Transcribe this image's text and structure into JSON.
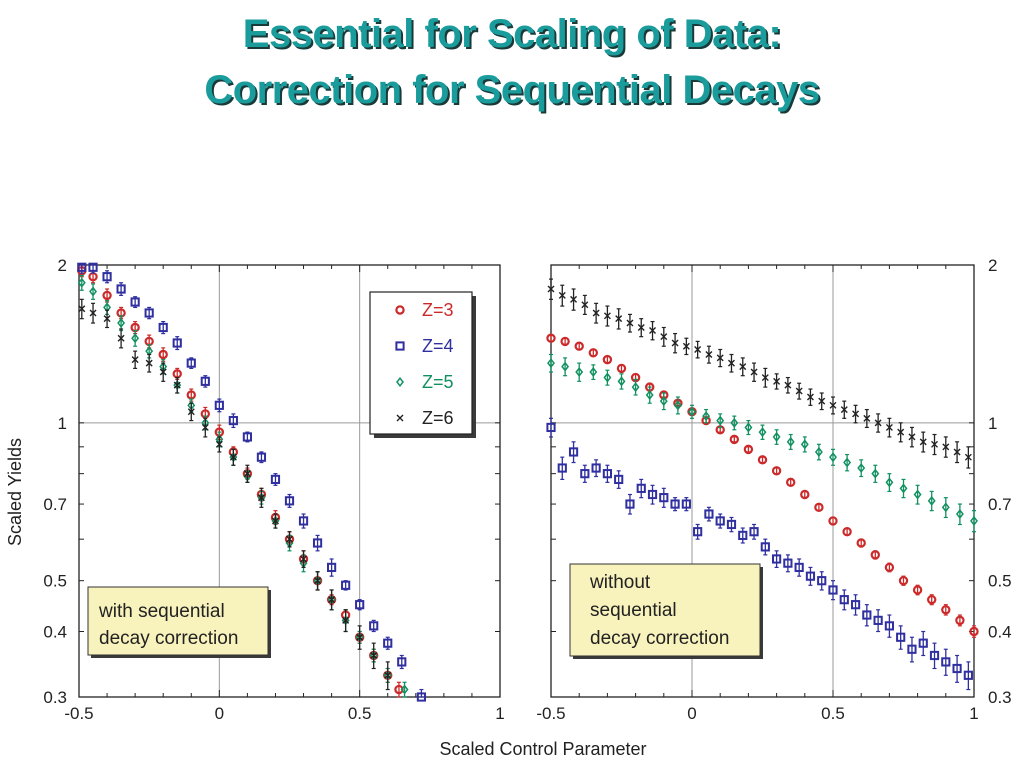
{
  "title_line1": "Essential for Scaling of Data:",
  "title_line2": "Correction for Sequential Decays",
  "colors": {
    "title": "#1a9c9c",
    "z3": "#cc2a2a",
    "z4": "#2f2fa0",
    "z5": "#119060",
    "z6": "#222222",
    "annotation_bg": "#f8f2bd"
  },
  "chart_data": [
    {
      "type": "scatter",
      "panel": "left",
      "xlabel": "Scaled Control Parameter",
      "ylabel": "Scaled Yields",
      "xlim": [
        -0.5,
        1
      ],
      "ylim": [
        0.3,
        2
      ],
      "yscale": "log",
      "x_ticks": [
        "-0.5",
        "0",
        "0.5",
        "1"
      ],
      "y_ticks": [
        "2",
        "1",
        "0.7",
        "0.5",
        "0.4",
        "0.3"
      ],
      "grid": true,
      "legend_position": "top-right",
      "legend": [
        "Z=3",
        "Z=4",
        "Z=5",
        "Z=6"
      ],
      "annotation": [
        "with sequential",
        "decay correction"
      ],
      "series": [
        {
          "name": "Z=3",
          "marker": "circle",
          "color": "#cc2a2a",
          "x": [
            -0.49,
            -0.45,
            -0.4,
            -0.35,
            -0.3,
            -0.25,
            -0.2,
            -0.15,
            -0.1,
            -0.05,
            0.0,
            0.05,
            0.1,
            0.15,
            0.2,
            0.25,
            0.3,
            0.35,
            0.4,
            0.45,
            0.5,
            0.55,
            0.6,
            0.64
          ],
          "y": [
            1.95,
            1.9,
            1.75,
            1.62,
            1.52,
            1.43,
            1.35,
            1.24,
            1.13,
            1.04,
            0.96,
            0.88,
            0.8,
            0.73,
            0.66,
            0.6,
            0.55,
            0.5,
            0.46,
            0.43,
            0.39,
            0.36,
            0.33,
            0.31
          ],
          "err": [
            0.05,
            0.05,
            0.05,
            0.04,
            0.04,
            0.04,
            0.04,
            0.03,
            0.03,
            0.03,
            0.03,
            0.02,
            0.02,
            0.02,
            0.02,
            0.02,
            0.02,
            0.02,
            0.01,
            0.01,
            0.01,
            0.01,
            0.01,
            0.01
          ]
        },
        {
          "name": "Z=4",
          "marker": "square",
          "color": "#2f2fa0",
          "x": [
            -0.49,
            -0.45,
            -0.4,
            -0.35,
            -0.3,
            -0.25,
            -0.2,
            -0.15,
            -0.1,
            -0.05,
            0.0,
            0.05,
            0.1,
            0.15,
            0.2,
            0.25,
            0.3,
            0.35,
            0.4,
            0.45,
            0.5,
            0.55,
            0.6,
            0.65,
            0.72
          ],
          "y": [
            1.98,
            1.98,
            1.9,
            1.8,
            1.7,
            1.62,
            1.52,
            1.42,
            1.3,
            1.2,
            1.08,
            1.01,
            0.94,
            0.86,
            0.78,
            0.71,
            0.65,
            0.59,
            0.53,
            0.49,
            0.45,
            0.41,
            0.38,
            0.35,
            0.3
          ],
          "err": [
            0.05,
            0.05,
            0.05,
            0.05,
            0.04,
            0.04,
            0.04,
            0.04,
            0.03,
            0.03,
            0.03,
            0.03,
            0.02,
            0.02,
            0.02,
            0.02,
            0.02,
            0.02,
            0.02,
            0.01,
            0.01,
            0.01,
            0.01,
            0.01,
            0.01
          ]
        },
        {
          "name": "Z=5",
          "marker": "diamond",
          "color": "#119060",
          "x": [
            -0.49,
            -0.45,
            -0.4,
            -0.35,
            -0.3,
            -0.25,
            -0.2,
            -0.15,
            -0.1,
            -0.05,
            0.0,
            0.05,
            0.1,
            0.15,
            0.2,
            0.25,
            0.3,
            0.35,
            0.4,
            0.45,
            0.5,
            0.55,
            0.6,
            0.66
          ],
          "y": [
            1.85,
            1.78,
            1.66,
            1.55,
            1.45,
            1.37,
            1.28,
            1.18,
            1.08,
            1.0,
            0.93,
            0.86,
            0.79,
            0.72,
            0.65,
            0.59,
            0.54,
            0.5,
            0.46,
            0.42,
            0.39,
            0.36,
            0.33,
            0.31
          ],
          "err": [
            0.06,
            0.06,
            0.05,
            0.05,
            0.05,
            0.04,
            0.04,
            0.04,
            0.03,
            0.03,
            0.03,
            0.03,
            0.02,
            0.02,
            0.02,
            0.02,
            0.02,
            0.02,
            0.02,
            0.02,
            0.01,
            0.01,
            0.01,
            0.01
          ]
        },
        {
          "name": "Z=6",
          "marker": "cross",
          "color": "#222222",
          "x": [
            -0.49,
            -0.45,
            -0.4,
            -0.35,
            -0.3,
            -0.25,
            -0.2,
            -0.15,
            -0.1,
            -0.05,
            0.0,
            0.05,
            0.1,
            0.15,
            0.2,
            0.25,
            0.3,
            0.35,
            0.4,
            0.45,
            0.5,
            0.55,
            0.6
          ],
          "y": [
            1.65,
            1.62,
            1.58,
            1.45,
            1.32,
            1.3,
            1.25,
            1.18,
            1.05,
            0.98,
            0.91,
            0.86,
            0.8,
            0.72,
            0.65,
            0.6,
            0.55,
            0.5,
            0.46,
            0.42,
            0.39,
            0.36,
            0.33
          ],
          "err": [
            0.07,
            0.07,
            0.06,
            0.06,
            0.05,
            0.05,
            0.05,
            0.04,
            0.04,
            0.04,
            0.03,
            0.03,
            0.03,
            0.03,
            0.02,
            0.02,
            0.02,
            0.02,
            0.02,
            0.02,
            0.02,
            0.02,
            0.02
          ]
        }
      ]
    },
    {
      "type": "scatter",
      "panel": "right",
      "xlim": [
        -0.5,
        1
      ],
      "ylim": [
        0.3,
        2
      ],
      "yscale": "log",
      "x_ticks": [
        "-0.5",
        "0",
        "0.5",
        "1"
      ],
      "y_ticks": [
        "2",
        "1",
        "0.7",
        "0.5",
        "0.4",
        "0.3"
      ],
      "grid": true,
      "annotation": [
        "without",
        "sequential",
        "decay correction"
      ],
      "series": [
        {
          "name": "Z=3",
          "marker": "circle",
          "color": "#cc2a2a",
          "x": [
            -0.5,
            -0.45,
            -0.4,
            -0.35,
            -0.3,
            -0.25,
            -0.2,
            -0.15,
            -0.1,
            -0.05,
            0.0,
            0.05,
            0.1,
            0.15,
            0.2,
            0.25,
            0.3,
            0.35,
            0.4,
            0.45,
            0.5,
            0.55,
            0.6,
            0.65,
            0.7,
            0.75,
            0.8,
            0.85,
            0.9,
            0.95,
            1.0
          ],
          "y": [
            1.45,
            1.43,
            1.4,
            1.36,
            1.32,
            1.27,
            1.22,
            1.17,
            1.13,
            1.09,
            1.05,
            1.01,
            0.97,
            0.93,
            0.89,
            0.85,
            0.81,
            0.77,
            0.73,
            0.69,
            0.65,
            0.62,
            0.59,
            0.56,
            0.53,
            0.5,
            0.48,
            0.46,
            0.44,
            0.42,
            0.4
          ],
          "err": [
            0.02,
            0.02,
            0.02,
            0.02,
            0.02,
            0.02,
            0.02,
            0.02,
            0.01,
            0.01,
            0.01,
            0.01,
            0.01,
            0.01,
            0.01,
            0.01,
            0.01,
            0.01,
            0.01,
            0.01,
            0.01,
            0.01,
            0.01,
            0.01,
            0.01,
            0.01,
            0.01,
            0.01,
            0.01,
            0.01,
            0.01
          ]
        },
        {
          "name": "Z=4",
          "marker": "square",
          "color": "#2f2fa0",
          "x": [
            -0.5,
            -0.46,
            -0.42,
            -0.38,
            -0.34,
            -0.3,
            -0.26,
            -0.22,
            -0.18,
            -0.14,
            -0.1,
            -0.06,
            -0.02,
            0.02,
            0.06,
            0.1,
            0.14,
            0.18,
            0.22,
            0.26,
            0.3,
            0.34,
            0.38,
            0.42,
            0.46,
            0.5,
            0.54,
            0.58,
            0.62,
            0.66,
            0.7,
            0.74,
            0.78,
            0.82,
            0.86,
            0.9,
            0.94,
            0.98
          ],
          "y": [
            0.98,
            0.82,
            0.88,
            0.8,
            0.82,
            0.8,
            0.78,
            0.7,
            0.75,
            0.73,
            0.72,
            0.7,
            0.7,
            0.62,
            0.67,
            0.65,
            0.64,
            0.61,
            0.62,
            0.58,
            0.55,
            0.54,
            0.53,
            0.51,
            0.5,
            0.48,
            0.46,
            0.45,
            0.43,
            0.42,
            0.41,
            0.39,
            0.37,
            0.38,
            0.36,
            0.35,
            0.34,
            0.33
          ],
          "err": [
            0.04,
            0.04,
            0.04,
            0.03,
            0.03,
            0.03,
            0.03,
            0.03,
            0.03,
            0.03,
            0.03,
            0.02,
            0.02,
            0.02,
            0.02,
            0.02,
            0.02,
            0.02,
            0.02,
            0.02,
            0.02,
            0.02,
            0.02,
            0.02,
            0.02,
            0.02,
            0.02,
            0.02,
            0.02,
            0.02,
            0.02,
            0.02,
            0.02,
            0.02,
            0.02,
            0.02,
            0.02,
            0.02
          ]
        },
        {
          "name": "Z=5",
          "marker": "diamond",
          "color": "#119060",
          "x": [
            -0.5,
            -0.45,
            -0.4,
            -0.35,
            -0.3,
            -0.25,
            -0.2,
            -0.15,
            -0.1,
            -0.05,
            0.0,
            0.05,
            0.1,
            0.15,
            0.2,
            0.25,
            0.3,
            0.35,
            0.4,
            0.45,
            0.5,
            0.55,
            0.6,
            0.65,
            0.7,
            0.75,
            0.8,
            0.85,
            0.9,
            0.95,
            1.0
          ],
          "y": [
            1.3,
            1.28,
            1.25,
            1.25,
            1.22,
            1.2,
            1.17,
            1.13,
            1.1,
            1.08,
            1.05,
            1.03,
            1.01,
            1.0,
            0.98,
            0.96,
            0.94,
            0.92,
            0.91,
            0.88,
            0.86,
            0.84,
            0.82,
            0.8,
            0.77,
            0.75,
            0.73,
            0.71,
            0.69,
            0.67,
            0.65
          ],
          "err": [
            0.05,
            0.05,
            0.05,
            0.04,
            0.04,
            0.04,
            0.04,
            0.04,
            0.04,
            0.04,
            0.03,
            0.03,
            0.03,
            0.03,
            0.03,
            0.03,
            0.03,
            0.03,
            0.03,
            0.03,
            0.03,
            0.03,
            0.03,
            0.03,
            0.03,
            0.03,
            0.03,
            0.03,
            0.03,
            0.03,
            0.03
          ]
        },
        {
          "name": "Z=6",
          "marker": "cross",
          "color": "#222222",
          "x": [
            -0.5,
            -0.46,
            -0.42,
            -0.38,
            -0.34,
            -0.3,
            -0.26,
            -0.22,
            -0.18,
            -0.14,
            -0.1,
            -0.06,
            -0.02,
            0.02,
            0.06,
            0.1,
            0.14,
            0.18,
            0.22,
            0.26,
            0.3,
            0.34,
            0.38,
            0.42,
            0.46,
            0.5,
            0.54,
            0.58,
            0.62,
            0.66,
            0.7,
            0.74,
            0.78,
            0.82,
            0.86,
            0.9,
            0.94,
            0.98
          ],
          "y": [
            1.8,
            1.75,
            1.72,
            1.68,
            1.62,
            1.6,
            1.58,
            1.55,
            1.52,
            1.5,
            1.46,
            1.42,
            1.4,
            1.38,
            1.35,
            1.33,
            1.3,
            1.28,
            1.25,
            1.22,
            1.2,
            1.18,
            1.15,
            1.12,
            1.1,
            1.08,
            1.06,
            1.04,
            1.02,
            1.0,
            0.98,
            0.96,
            0.94,
            0.92,
            0.91,
            0.9,
            0.88,
            0.86
          ],
          "err": [
            0.08,
            0.08,
            0.08,
            0.07,
            0.07,
            0.07,
            0.07,
            0.06,
            0.06,
            0.06,
            0.06,
            0.06,
            0.05,
            0.05,
            0.05,
            0.05,
            0.05,
            0.05,
            0.05,
            0.05,
            0.04,
            0.04,
            0.04,
            0.04,
            0.04,
            0.04,
            0.04,
            0.04,
            0.04,
            0.04,
            0.04,
            0.04,
            0.04,
            0.04,
            0.04,
            0.04,
            0.04,
            0.04
          ]
        }
      ]
    }
  ]
}
